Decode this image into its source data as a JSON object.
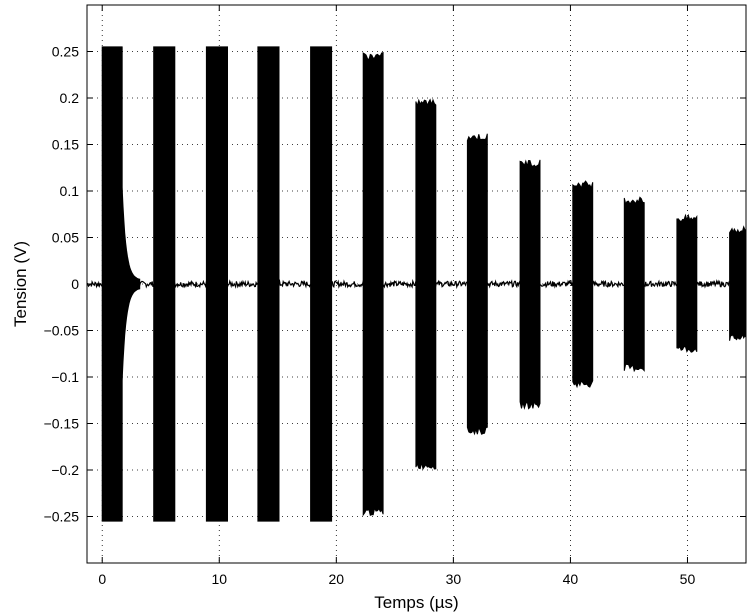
{
  "chart_data": {
    "type": "line",
    "title": "",
    "xlabel": "Temps (µs)",
    "ylabel": "Tension (V)",
    "xlim": [
      -1.3,
      55
    ],
    "ylim": [
      -0.3,
      0.3
    ],
    "xticks": [
      0,
      10,
      20,
      30,
      40,
      50
    ],
    "yticks": [
      -0.25,
      -0.2,
      -0.15,
      -0.1,
      -0.05,
      0,
      0.05,
      0.1,
      0.15,
      0.2,
      0.25
    ],
    "ytick_labels": [
      "−0.25",
      "−0.2",
      "−0.15",
      "−0.1",
      "−0.05",
      "0",
      "0.05",
      "0.1",
      "0.15",
      "0.2",
      "0.25"
    ],
    "grid": true,
    "line_color": "#000000",
    "bursts": [
      {
        "start": 0.0,
        "end": 1.7,
        "amplitude": 0.255
      },
      {
        "start": 4.4,
        "end": 6.2,
        "amplitude": 0.255
      },
      {
        "start": 8.9,
        "end": 10.7,
        "amplitude": 0.255
      },
      {
        "start": 13.3,
        "end": 15.1,
        "amplitude": 0.255
      },
      {
        "start": 17.8,
        "end": 19.6,
        "amplitude": 0.255
      },
      {
        "start": 22.3,
        "end": 24.0,
        "amplitude": 0.245
      },
      {
        "start": 26.8,
        "end": 28.5,
        "amplitude": 0.195
      },
      {
        "start": 31.2,
        "end": 32.9,
        "amplitude": 0.158
      },
      {
        "start": 35.7,
        "end": 37.4,
        "amplitude": 0.13
      },
      {
        "start": 40.2,
        "end": 41.9,
        "amplitude": 0.107
      },
      {
        "start": 44.6,
        "end": 46.3,
        "amplitude": 0.09
      },
      {
        "start": 49.1,
        "end": 50.8,
        "amplitude": 0.07
      },
      {
        "start": 53.6,
        "end": 55.0,
        "amplitude": 0.058
      }
    ],
    "ringdown": {
      "start": 1.7,
      "end": 3.2,
      "amplitude": 0.1
    },
    "baseline_noise": 0.003
  }
}
